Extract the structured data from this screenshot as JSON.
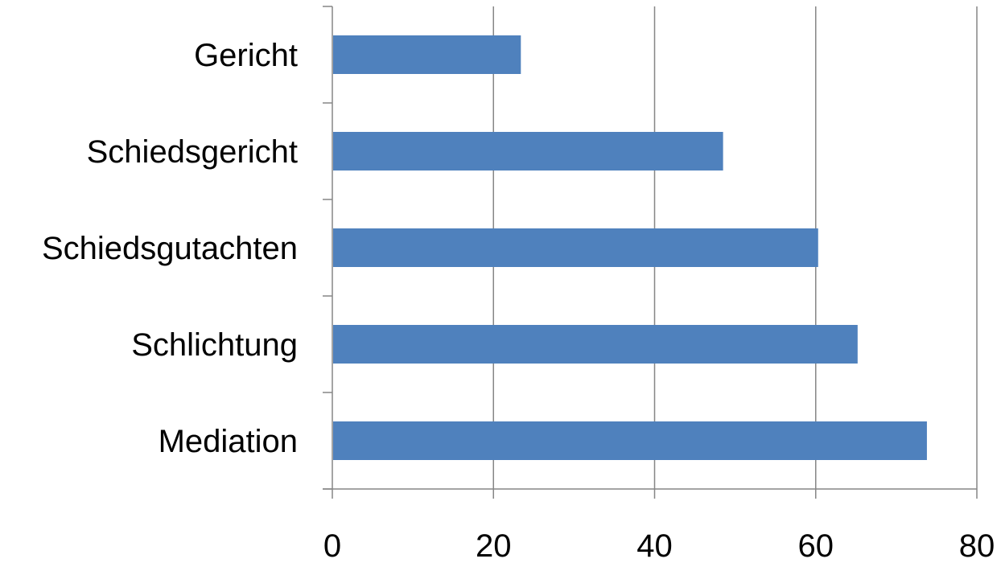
{
  "chart_data": {
    "type": "bar",
    "orientation": "horizontal",
    "categories": [
      "Gericht",
      "Schiedsgericht",
      "Schiedsgutachten",
      "Schlichtung",
      "Mediation"
    ],
    "values": [
      23.4,
      48.5,
      60.3,
      65.2,
      73.8
    ],
    "xlim": [
      0,
      80
    ],
    "x_ticks": [
      0,
      20,
      40,
      60,
      80
    ],
    "x_tick_labels": [
      "0",
      "20",
      "40",
      "60",
      "80"
    ],
    "grid": "vertical",
    "legend": "none",
    "bar_color": "#4f81bd",
    "title": "",
    "xlabel": "",
    "ylabel": ""
  }
}
